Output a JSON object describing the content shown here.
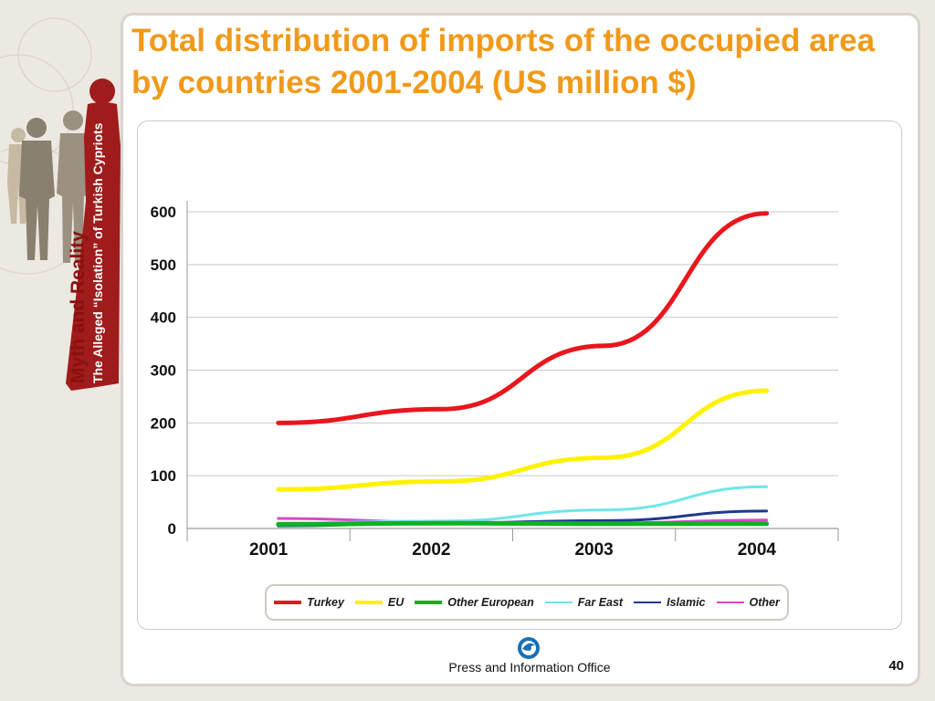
{
  "slide": {
    "title": "Total distribution of imports of the occupied area by countries 2001-2004 (US million $)",
    "footer_org": "Press and Information Office",
    "page_number": "40",
    "side_brand_line1": "Myth and Reality",
    "side_brand_line2": "The Alleged “Isolation” of Turkish Cypriots"
  },
  "colors": {
    "title": "#f09a1b",
    "background": "#ece8e2",
    "silhouette_dark": "#8a8070",
    "silhouette_light": "#c8b9a2",
    "brand_red": "#a01b1b"
  },
  "chart_data": {
    "type": "line",
    "title": "",
    "xlabel": "",
    "ylabel": "",
    "categories": [
      "2001",
      "2002",
      "2003",
      "2004"
    ],
    "ylim": [
      0,
      600
    ],
    "yticks": [
      "0",
      "100",
      "200",
      "300",
      "400",
      "500",
      "600"
    ],
    "grid": "horizontal",
    "legend_position": "bottom",
    "series": [
      {
        "name": "Turkey",
        "values": [
          200,
          226,
          346,
          597
        ],
        "color": "#e8161d",
        "width": 5
      },
      {
        "name": "EU",
        "values": [
          74,
          89,
          134,
          261
        ],
        "color": "#fff200",
        "width": 5
      },
      {
        "name": "Other European",
        "values": [
          8,
          10,
          9,
          9
        ],
        "color": "#12b024",
        "width": 5
      },
      {
        "name": "Far East",
        "values": [
          10,
          14,
          35,
          79
        ],
        "color": "#6fe6ea",
        "width": 3
      },
      {
        "name": "Islamic",
        "values": [
          5,
          10,
          15,
          33
        ],
        "color": "#1d3a8c",
        "width": 3
      },
      {
        "name": "Other",
        "values": [
          19,
          12,
          10,
          16
        ],
        "color": "#d848c8",
        "width": 3
      }
    ]
  }
}
